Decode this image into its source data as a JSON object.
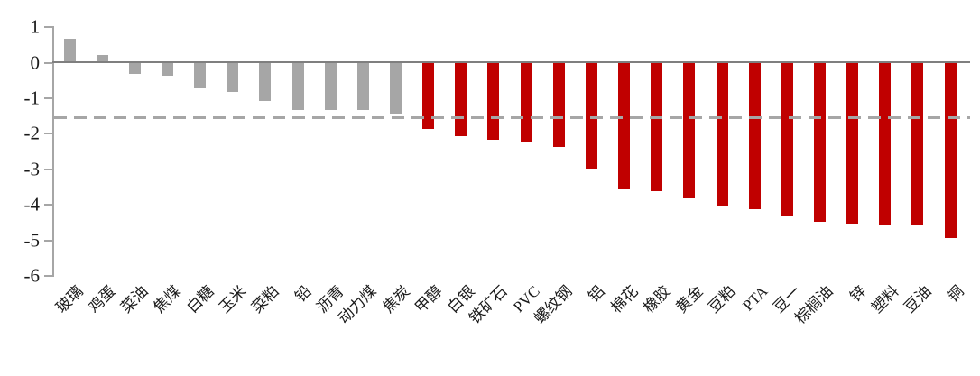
{
  "chart_data": {
    "type": "bar",
    "title": "",
    "xlabel": "",
    "ylabel": "",
    "categories": [
      "玻璃",
      "鸡蛋",
      "菜油",
      "焦煤",
      "白糖",
      "玉米",
      "菜粕",
      "铅",
      "沥青",
      "动力煤",
      "焦炭",
      "甲醇",
      "白银",
      "铁矿石",
      "PVC",
      "螺纹钢",
      "铝",
      "棉花",
      "橡胶",
      "黄金",
      "豆粕",
      "PTA",
      "豆一",
      "棕榈油",
      "锌",
      "塑料",
      "豆油",
      "铜"
    ],
    "values": [
      0.65,
      0.2,
      -0.35,
      -0.4,
      -0.75,
      -0.85,
      -1.1,
      -1.35,
      -1.35,
      -1.35,
      -1.45,
      -1.9,
      -2.1,
      -2.2,
      -2.25,
      -2.4,
      -3.0,
      -3.6,
      -3.65,
      -3.85,
      -4.05,
      -4.15,
      -4.35,
      -4.5,
      -4.55,
      -4.6,
      -4.6,
      -4.95
    ],
    "bar_colors": [
      "#a6a6a6",
      "#a6a6a6",
      "#a6a6a6",
      "#a6a6a6",
      "#a6a6a6",
      "#a6a6a6",
      "#a6a6a6",
      "#a6a6a6",
      "#a6a6a6",
      "#a6a6a6",
      "#a6a6a6",
      "#c00000",
      "#c00000",
      "#c00000",
      "#c00000",
      "#c00000",
      "#c00000",
      "#c00000",
      "#c00000",
      "#c00000",
      "#c00000",
      "#c00000",
      "#c00000",
      "#c00000",
      "#c00000",
      "#c00000",
      "#c00000",
      "#c00000"
    ],
    "ylim": [
      -6,
      1
    ],
    "yticks": [
      1,
      0,
      -1,
      -2,
      -3,
      -4,
      -5,
      -6
    ],
    "reference_line": {
      "value": -1.55,
      "style": "dashed",
      "color": "#a6a6a6"
    },
    "grid": false,
    "legend_position": "none",
    "colors": {
      "gray_bar": "#a6a6a6",
      "red_bar": "#c00000",
      "zero_axis": "#7f7f7f",
      "axis": "#a6a6a6",
      "tick_label": "#1a1a1a"
    }
  }
}
